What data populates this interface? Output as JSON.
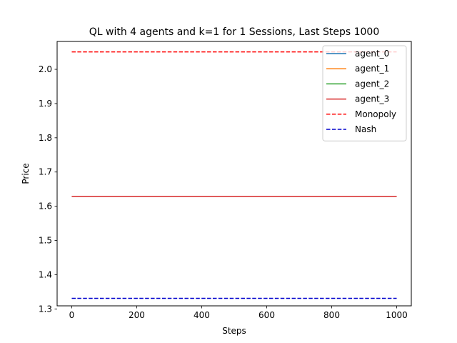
{
  "chart_data": {
    "type": "line",
    "title": "QL with 4 agents and k=1 for 1 Sessions, Last Steps 1000",
    "xlabel": "Steps",
    "ylabel": "Price",
    "xlim": [
      -45,
      1045
    ],
    "ylim": [
      1.309,
      2.0815
    ],
    "xticks": [
      0,
      200,
      400,
      600,
      800,
      1000
    ],
    "yticks": [
      1.3,
      1.4,
      1.5,
      1.6,
      1.7,
      1.8,
      1.9,
      2.0
    ],
    "xtick_labels": [
      "0",
      "200",
      "400",
      "600",
      "800",
      "1000"
    ],
    "ytick_labels": [
      "1.3",
      "1.4",
      "1.5",
      "1.6",
      "1.7",
      "1.8",
      "1.9",
      "2.0"
    ],
    "grid": false,
    "legend_position": "upper right",
    "series": [
      {
        "name": "agent_0",
        "color": "#1f77b4",
        "style": "solid",
        "x": [
          0,
          1000
        ],
        "y": [
          1.629,
          1.629
        ]
      },
      {
        "name": "agent_1",
        "color": "#ff7f0e",
        "style": "solid",
        "x": [
          0,
          1000
        ],
        "y": [
          1.629,
          1.629
        ]
      },
      {
        "name": "agent_2",
        "color": "#2ca02c",
        "style": "solid",
        "x": [
          0,
          1000
        ],
        "y": [
          1.629,
          1.629
        ]
      },
      {
        "name": "agent_3",
        "color": "#d62728",
        "style": "solid",
        "x": [
          0,
          1000
        ],
        "y": [
          1.629,
          1.629
        ]
      },
      {
        "name": "Monopoly",
        "color": "#ff0000",
        "style": "dashed",
        "x": [
          0,
          1000
        ],
        "y": [
          2.051,
          2.051
        ]
      },
      {
        "name": "Nash",
        "color": "#0000cc",
        "style": "dashed",
        "x": [
          0,
          1000
        ],
        "y": [
          1.331,
          1.331
        ]
      }
    ]
  }
}
